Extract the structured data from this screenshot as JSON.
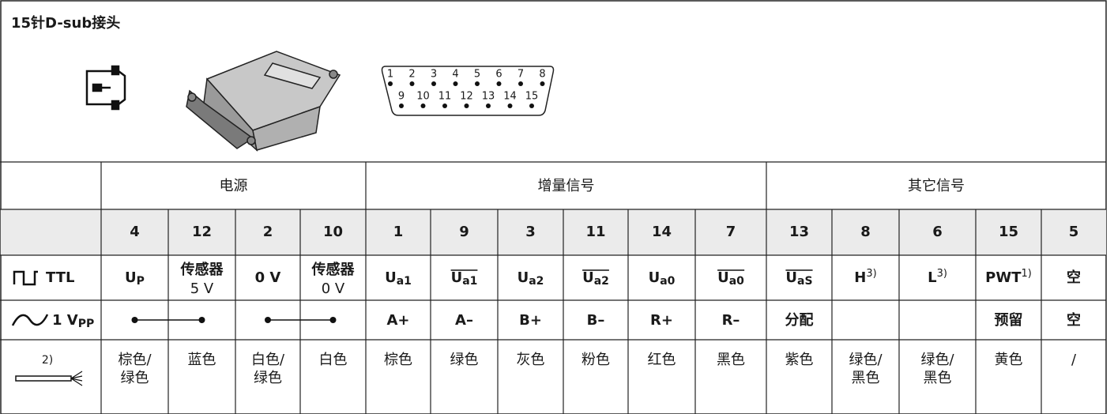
{
  "header": {
    "title": "15针D-sub接头",
    "pins_top": [
      "1",
      "2",
      "3",
      "4",
      "5",
      "6",
      "7",
      "8"
    ],
    "pins_bottom": [
      "9",
      "10",
      "11",
      "12",
      "13",
      "14",
      "15"
    ]
  },
  "table": {
    "groups": [
      "电源",
      "增量信号",
      "其它信号"
    ],
    "pins": [
      "4",
      "12",
      "2",
      "10",
      "1",
      "9",
      "3",
      "11",
      "14",
      "7",
      "13",
      "8",
      "6",
      "15",
      "5"
    ],
    "ttl": {
      "label": "TTL",
      "cells": [
        {
          "text": "U",
          "sub": "P"
        },
        {
          "text": "传感器",
          "line2": "5 V"
        },
        {
          "text": "0 V"
        },
        {
          "text": "传感器",
          "line2": "0 V"
        },
        {
          "text": "U",
          "sub": "a1"
        },
        {
          "text": "U",
          "sub": "a1",
          "overline": true
        },
        {
          "text": "U",
          "sub": "a2"
        },
        {
          "text": "U",
          "sub": "a2",
          "overline": true
        },
        {
          "text": "U",
          "sub": "a0"
        },
        {
          "text": "U",
          "sub": "a0",
          "overline": true
        },
        {
          "text": "U",
          "sub": "aS",
          "overline": true
        },
        {
          "text": "H",
          "sup": "3)"
        },
        {
          "text": "L",
          "sup": "3)"
        },
        {
          "text": "PWT",
          "sup": "1)"
        },
        {
          "text": "空"
        }
      ]
    },
    "vpp": {
      "label": "1 V",
      "label_sub": "PP",
      "cells": [
        null,
        null,
        null,
        null,
        "A+",
        "A–",
        "B+",
        "B–",
        "R+",
        "R–",
        "分配",
        null,
        null,
        "预留",
        "空"
      ]
    },
    "wire": {
      "label": "2)",
      "cells": [
        [
          "棕色/",
          "绿色"
        ],
        [
          "蓝色"
        ],
        [
          "白色/",
          "绿色"
        ],
        [
          "白色"
        ],
        [
          "棕色"
        ],
        [
          "绿色"
        ],
        [
          "灰色"
        ],
        [
          "粉色"
        ],
        [
          "红色"
        ],
        [
          "黑色"
        ],
        [
          "紫色"
        ],
        [
          "绿色/",
          "黑色"
        ],
        [
          "绿色/",
          "黑色"
        ],
        [
          "黄色"
        ],
        [
          "/"
        ]
      ]
    }
  }
}
